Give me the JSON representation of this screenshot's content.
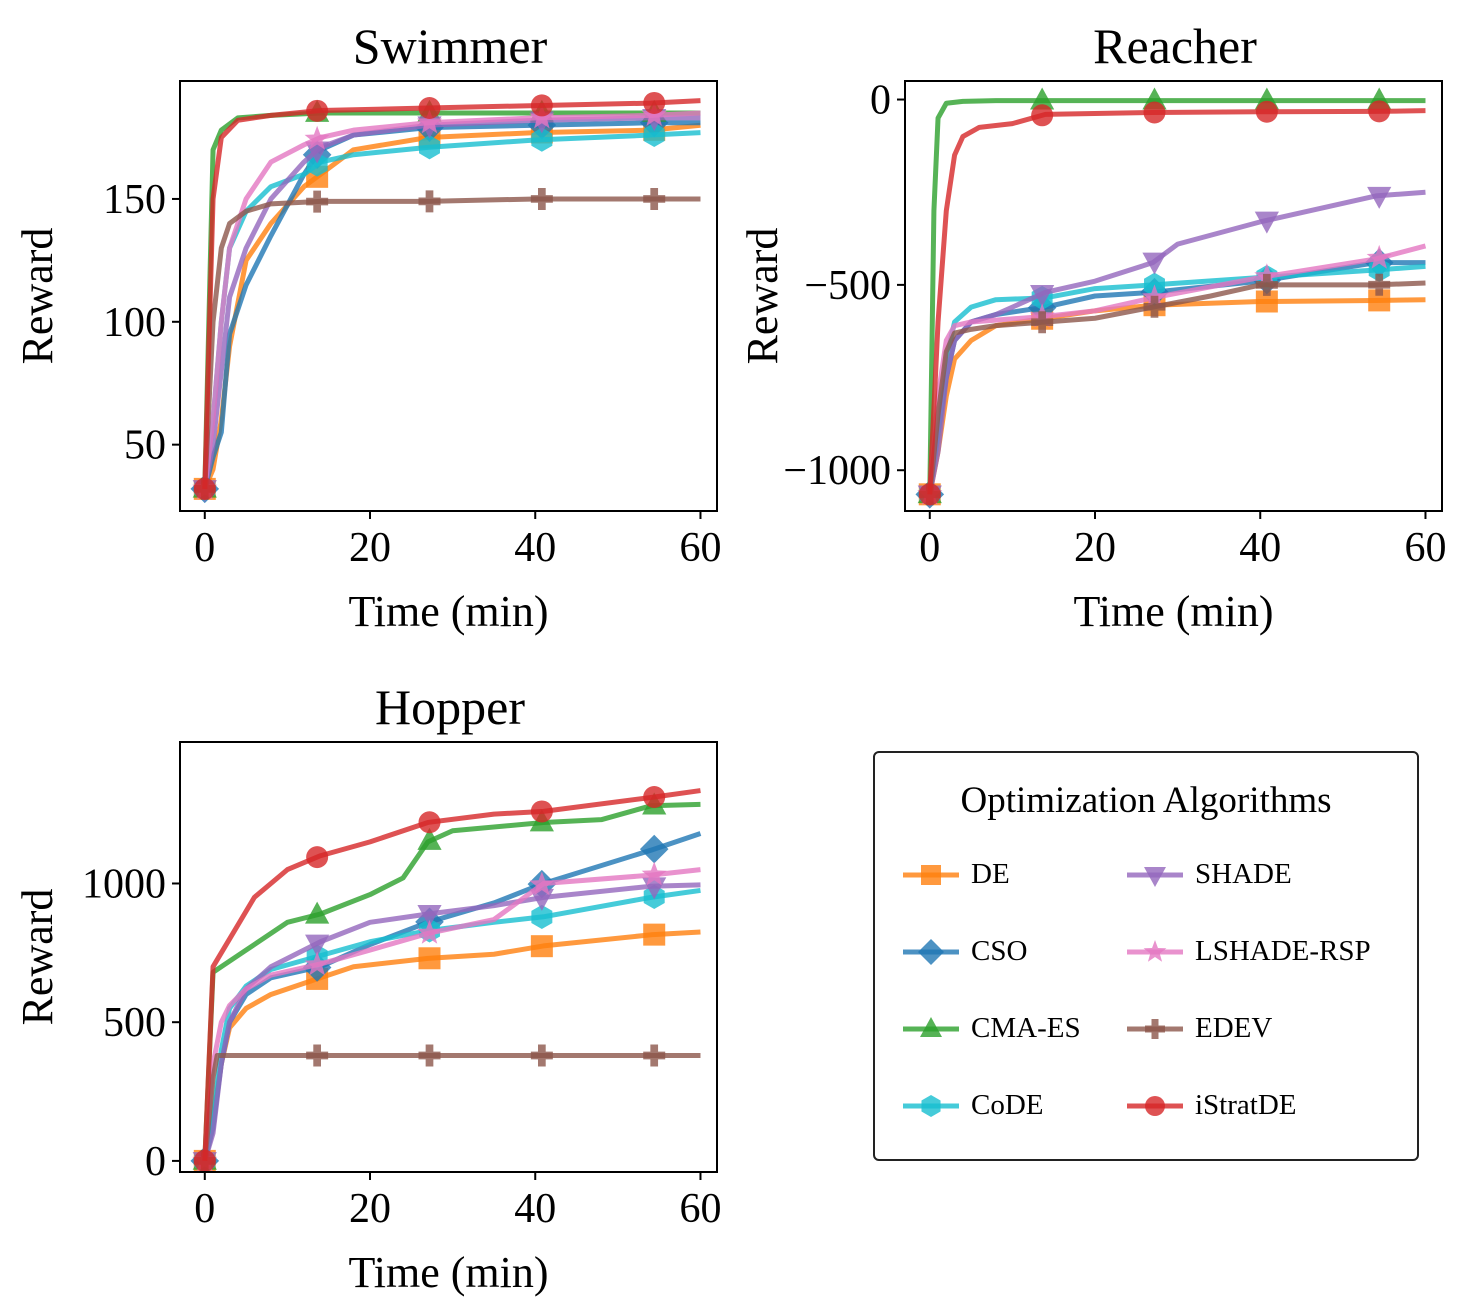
{
  "chart_data": [
    {
      "type": "line",
      "title": "Swimmer",
      "xlabel": "Time (min)",
      "ylabel": "Reward",
      "xlim": [
        -3,
        62
      ],
      "ylim": [
        23,
        198
      ],
      "xticks": [
        0,
        20,
        40,
        60
      ],
      "yticks": [
        50,
        100,
        150
      ],
      "series": [
        {
          "name": "DE",
          "x": [
            0,
            1,
            2,
            3,
            5,
            8,
            12,
            14,
            18,
            27,
            40,
            54,
            60
          ],
          "y": [
            32,
            40,
            60,
            90,
            125,
            140,
            155,
            160,
            170,
            175,
            177,
            178,
            180
          ]
        },
        {
          "name": "CSO",
          "x": [
            0,
            1,
            2,
            3,
            5,
            8,
            12,
            14,
            18,
            27,
            40,
            54,
            60
          ],
          "y": [
            32,
            45,
            55,
            95,
            115,
            135,
            160,
            170,
            176,
            179,
            180,
            181,
            181
          ]
        },
        {
          "name": "CMA-ES",
          "x": [
            0,
            1,
            2,
            4,
            8,
            14,
            27,
            40,
            54,
            60
          ],
          "y": [
            32,
            170,
            178,
            183,
            184,
            185,
            185,
            185,
            185,
            185
          ]
        },
        {
          "name": "CoDE",
          "x": [
            0,
            1,
            2,
            3,
            5,
            8,
            12,
            14,
            18,
            27,
            40,
            54,
            60
          ],
          "y": [
            32,
            60,
            100,
            130,
            145,
            155,
            160,
            165,
            168,
            171,
            174,
            176,
            177
          ]
        },
        {
          "name": "SHADE",
          "x": [
            0,
            1,
            2,
            3,
            5,
            8,
            12,
            14,
            18,
            27,
            40,
            54,
            60
          ],
          "y": [
            32,
            50,
            80,
            110,
            130,
            150,
            165,
            171,
            176,
            180,
            182,
            183,
            183
          ]
        },
        {
          "name": "LSHADE-RSP",
          "x": [
            0,
            1,
            2,
            3,
            5,
            8,
            12,
            14,
            18,
            27,
            40,
            54,
            60
          ],
          "y": [
            32,
            60,
            100,
            130,
            150,
            165,
            172,
            175,
            178,
            181,
            183,
            184,
            185
          ]
        },
        {
          "name": "EDEV",
          "x": [
            0,
            1,
            2,
            3,
            5,
            8,
            14,
            27,
            40,
            54,
            60
          ],
          "y": [
            32,
            100,
            130,
            140,
            145,
            148,
            149,
            149,
            150,
            150,
            150
          ]
        },
        {
          "name": "iStratDE",
          "x": [
            0,
            1,
            2,
            4,
            8,
            14,
            27,
            40,
            54,
            60
          ],
          "y": [
            32,
            150,
            175,
            182,
            184,
            186,
            187,
            188,
            189,
            190
          ]
        }
      ]
    },
    {
      "type": "line",
      "title": "Reacher",
      "xlabel": "Time (min)",
      "ylabel": "Reward",
      "xlim": [
        -3,
        62
      ],
      "ylim": [
        -1110,
        50
      ],
      "xticks": [
        0,
        20,
        40,
        60
      ],
      "yticks": [
        0,
        -500,
        -1000
      ],
      "yticklabels": [
        "0",
        "−500",
        "−1000"
      ],
      "series": [
        {
          "name": "DE",
          "x": [
            0,
            1,
            2,
            3,
            5,
            8,
            14,
            20,
            27,
            40,
            54,
            60
          ],
          "y": [
            -1065,
            -950,
            -800,
            -700,
            -650,
            -610,
            -590,
            -570,
            -555,
            -545,
            -542,
            -540
          ]
        },
        {
          "name": "CSO",
          "x": [
            0,
            1,
            2,
            3,
            5,
            8,
            14,
            20,
            27,
            40,
            54,
            60
          ],
          "y": [
            -1065,
            -900,
            -750,
            -650,
            -600,
            -580,
            -560,
            -530,
            -520,
            -490,
            -440,
            -440
          ]
        },
        {
          "name": "CMA-ES",
          "x": [
            0,
            0.5,
            1,
            2,
            4,
            8,
            14,
            27,
            40,
            54,
            60
          ],
          "y": [
            -1065,
            -300,
            -50,
            -10,
            -5,
            -3,
            -3,
            -3,
            -3,
            -3,
            -3
          ]
        },
        {
          "name": "CoDE",
          "x": [
            0,
            1,
            2,
            3,
            5,
            8,
            14,
            20,
            27,
            40,
            54,
            60
          ],
          "y": [
            -1065,
            -900,
            -700,
            -600,
            -560,
            -540,
            -535,
            -510,
            -500,
            -480,
            -460,
            -450
          ]
        },
        {
          "name": "SHADE",
          "x": [
            0,
            1,
            2,
            3,
            5,
            8,
            14,
            20,
            27,
            30,
            40,
            54,
            60
          ],
          "y": [
            -1065,
            -950,
            -750,
            -650,
            -600,
            -580,
            -520,
            -490,
            -440,
            -390,
            -330,
            -260,
            -250
          ]
        },
        {
          "name": "LSHADE-RSP",
          "x": [
            0,
            1,
            2,
            3,
            5,
            8,
            14,
            20,
            27,
            40,
            54,
            60
          ],
          "y": [
            -1065,
            -800,
            -650,
            -610,
            -600,
            -595,
            -585,
            -570,
            -535,
            -480,
            -430,
            -395
          ]
        },
        {
          "name": "EDEV",
          "x": [
            0,
            1,
            2,
            3,
            5,
            8,
            14,
            20,
            27,
            34,
            40,
            54,
            60
          ],
          "y": [
            -1065,
            -850,
            -680,
            -630,
            -620,
            -610,
            -600,
            -590,
            -560,
            -530,
            -500,
            -500,
            -495
          ]
        },
        {
          "name": "iStratDE",
          "x": [
            0,
            1,
            2,
            3,
            4,
            6,
            10,
            14,
            27,
            40,
            54,
            60
          ],
          "y": [
            -1065,
            -600,
            -300,
            -150,
            -100,
            -75,
            -65,
            -40,
            -35,
            -33,
            -32,
            -30
          ]
        }
      ]
    },
    {
      "type": "line",
      "title": "Hopper",
      "xlabel": "Time (min)",
      "ylabel": "Reward",
      "xlim": [
        -3,
        62
      ],
      "ylim": [
        -40,
        1510
      ],
      "xticks": [
        0,
        20,
        40,
        60
      ],
      "yticks": [
        0,
        500,
        1000
      ],
      "series": [
        {
          "name": "DE",
          "x": [
            0,
            1,
            2,
            3,
            5,
            8,
            14,
            18,
            27,
            35,
            41,
            54,
            60
          ],
          "y": [
            0,
            150,
            350,
            480,
            550,
            600,
            660,
            700,
            730,
            745,
            775,
            815,
            825
          ]
        },
        {
          "name": "CSO",
          "x": [
            0,
            1,
            2,
            3,
            5,
            8,
            14,
            20,
            27,
            35,
            41,
            54,
            60
          ],
          "y": [
            0,
            120,
            350,
            500,
            600,
            660,
            700,
            780,
            860,
            930,
            1000,
            1120,
            1180
          ]
        },
        {
          "name": "CMA-ES",
          "x": [
            0,
            1,
            2,
            5,
            10,
            14,
            20,
            24,
            27,
            30,
            41,
            48,
            54,
            60
          ],
          "y": [
            0,
            680,
            700,
            760,
            860,
            890,
            960,
            1020,
            1150,
            1190,
            1220,
            1230,
            1280,
            1285
          ]
        },
        {
          "name": "CoDE",
          "x": [
            0,
            1,
            2,
            3,
            5,
            8,
            14,
            20,
            27,
            35,
            41,
            54,
            60
          ],
          "y": [
            0,
            150,
            400,
            550,
            630,
            690,
            740,
            790,
            830,
            860,
            880,
            950,
            975
          ]
        },
        {
          "name": "SHADE",
          "x": [
            0,
            1,
            2,
            3,
            5,
            8,
            14,
            20,
            27,
            35,
            41,
            54,
            60
          ],
          "y": [
            0,
            100,
            350,
            500,
            620,
            700,
            790,
            860,
            890,
            920,
            950,
            990,
            995
          ]
        },
        {
          "name": "LSHADE-RSP",
          "x": [
            0,
            1,
            2,
            3,
            5,
            8,
            14,
            20,
            27,
            35,
            41,
            54,
            60
          ],
          "y": [
            0,
            350,
            500,
            560,
            620,
            670,
            710,
            760,
            820,
            870,
            1000,
            1030,
            1050
          ]
        },
        {
          "name": "EDEV",
          "x": [
            0,
            1,
            1.5,
            14,
            27,
            41,
            54,
            60
          ],
          "y": [
            0,
            300,
            380,
            380,
            380,
            380,
            380,
            380
          ]
        },
        {
          "name": "iStratDE",
          "x": [
            0,
            1,
            2,
            4,
            6,
            8,
            10,
            14,
            20,
            27,
            35,
            41,
            54,
            60
          ],
          "y": [
            0,
            700,
            750,
            850,
            950,
            1000,
            1050,
            1100,
            1150,
            1220,
            1250,
            1260,
            1310,
            1335
          ]
        }
      ]
    }
  ],
  "legend": {
    "title": "Optimization Algorithms",
    "entries": [
      {
        "name": "DE",
        "color": "#ff7f0e",
        "marker": "square"
      },
      {
        "name": "CSO",
        "color": "#1f77b4",
        "marker": "diamond"
      },
      {
        "name": "CMA-ES",
        "color": "#2ca02c",
        "marker": "triangle-up"
      },
      {
        "name": "CoDE",
        "color": "#17becf",
        "marker": "hexagon"
      },
      {
        "name": "SHADE",
        "color": "#9467bd",
        "marker": "triangle-down"
      },
      {
        "name": "LSHADE-RSP",
        "color": "#e377c2",
        "marker": "star"
      },
      {
        "name": "EDEV",
        "color": "#8c564b",
        "marker": "plus"
      },
      {
        "name": "iStratDE",
        "color": "#d62728",
        "marker": "circle"
      }
    ]
  }
}
